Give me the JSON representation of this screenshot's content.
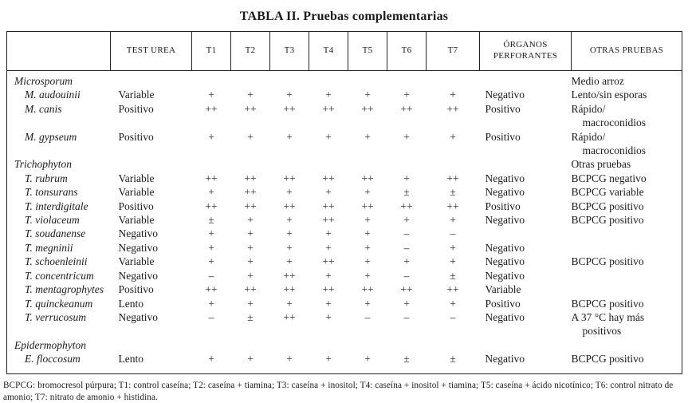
{
  "title": "TABLA II. Pruebas complementarias",
  "table": {
    "columns": [
      "",
      "TEST UREA",
      "T1",
      "T2",
      "T3",
      "T4",
      "T5",
      "T6",
      "T7",
      "ÓRGANOS PERFORANTES",
      "OTRAS PRUEBAS"
    ],
    "rows": [
      {
        "genus": true,
        "name": "Microsporum",
        "urea": "",
        "t": [
          "",
          "",
          "",
          "",
          "",
          "",
          ""
        ],
        "organos": "",
        "otras": "Medio arroz"
      },
      {
        "genus": false,
        "name": "M. audouinii",
        "urea": "Variable",
        "t": [
          "+",
          "+",
          "+",
          "+",
          "+",
          "+",
          "+"
        ],
        "organos": "Negativo",
        "otras": "Lento/sin esporas"
      },
      {
        "genus": false,
        "name": "M. canis",
        "urea": "Positivo",
        "t": [
          "++",
          "++",
          "++",
          "++",
          "++",
          "++",
          "++"
        ],
        "organos": "Positivo",
        "otras": "Rápido/\nmacroconidios"
      },
      {
        "genus": false,
        "name": "M. gypseum",
        "urea": "Positivo",
        "t": [
          "+",
          "+",
          "+",
          "+",
          "+",
          "+",
          "+"
        ],
        "organos": "Positivo",
        "otras": "Rápido/\nmacroconidios"
      },
      {
        "genus": true,
        "name": "Trichophyton",
        "urea": "",
        "t": [
          "",
          "",
          "",
          "",
          "",
          "",
          ""
        ],
        "organos": "",
        "otras": "Otras pruebas"
      },
      {
        "genus": false,
        "name": "T. rubrum",
        "urea": "Variable",
        "t": [
          "++",
          "++",
          "++",
          "++",
          "++",
          "+",
          "++"
        ],
        "organos": "Negativo",
        "otras": "BCPCG negativo"
      },
      {
        "genus": false,
        "name": "T. tonsurans",
        "urea": "Variable",
        "t": [
          "+",
          "++",
          "+",
          "+",
          "+",
          "±",
          "±"
        ],
        "organos": "Negativo",
        "otras": "BCPCG variable"
      },
      {
        "genus": false,
        "name": "T. interdigitale",
        "urea": "Positivo",
        "t": [
          "++",
          "++",
          "++",
          "++",
          "++",
          "++",
          "++"
        ],
        "organos": "Positivo",
        "otras": "BCPCG positivo"
      },
      {
        "genus": false,
        "name": "T. violaceum",
        "urea": "Variable",
        "t": [
          "±",
          "+",
          "+",
          "++",
          "+",
          "+",
          "+"
        ],
        "organos": "Negativo",
        "otras": "BCPCG positivo"
      },
      {
        "genus": false,
        "name": "T. soudanense",
        "urea": "Negativo",
        "t": [
          "+",
          "+",
          "+",
          "+",
          "+",
          "–",
          "–"
        ],
        "organos": "",
        "otras": ""
      },
      {
        "genus": false,
        "name": "T. megninii",
        "urea": "Negativo",
        "t": [
          "+",
          "+",
          "+",
          "+",
          "+",
          "–",
          "+"
        ],
        "organos": "Negativo",
        "otras": ""
      },
      {
        "genus": false,
        "name": "T. schoenleinii",
        "urea": "Variable",
        "t": [
          "+",
          "+",
          "+",
          "++",
          "+",
          "+",
          "+"
        ],
        "organos": "Negativo",
        "otras": "BCPCG positivo"
      },
      {
        "genus": false,
        "name": "T. concentricum",
        "urea": "Negativo",
        "t": [
          "–",
          "+",
          "++",
          "+",
          "+",
          "–",
          "±"
        ],
        "organos": "Negativo",
        "otras": ""
      },
      {
        "genus": false,
        "name": "T. mentagrophytes",
        "urea": "Positivo",
        "t": [
          "++",
          "++",
          "++",
          "++",
          "++",
          "++",
          "++"
        ],
        "organos": "Variable",
        "otras": ""
      },
      {
        "genus": false,
        "name": "T. quinckeanum",
        "urea": "Lento",
        "t": [
          "+",
          "+",
          "+",
          "+",
          "+",
          "+",
          "+"
        ],
        "organos": "Positivo",
        "otras": "BCPCG positivo"
      },
      {
        "genus": false,
        "name": "T. verrucosum",
        "urea": "Negativo",
        "t": [
          "–",
          "±",
          "++",
          "+",
          "–",
          "–",
          "–"
        ],
        "organos": "Negativo",
        "otras": "A 37 °C hay más\npositivos"
      },
      {
        "genus": true,
        "name": "Epidermophyton",
        "urea": "",
        "t": [
          "",
          "",
          "",
          "",
          "",
          "",
          ""
        ],
        "organos": "",
        "otras": ""
      },
      {
        "genus": false,
        "name": "E. floccosum",
        "urea": "Lento",
        "t": [
          "+",
          "+",
          "+",
          "+",
          "+",
          "±",
          "±"
        ],
        "organos": "Negativo",
        "otras": "BCPCG positivo"
      }
    ]
  },
  "footnote": "BCPCG: bromocresol púrpura; T1: control caseína; T2: caseína + tiamina; T3: caseína + inositol; T4: caseína + inositol + tiamina; T5: caseína + ácido nicotínico; T6: control nitrato de amonio; T7: nitrato de amonio + histidina."
}
